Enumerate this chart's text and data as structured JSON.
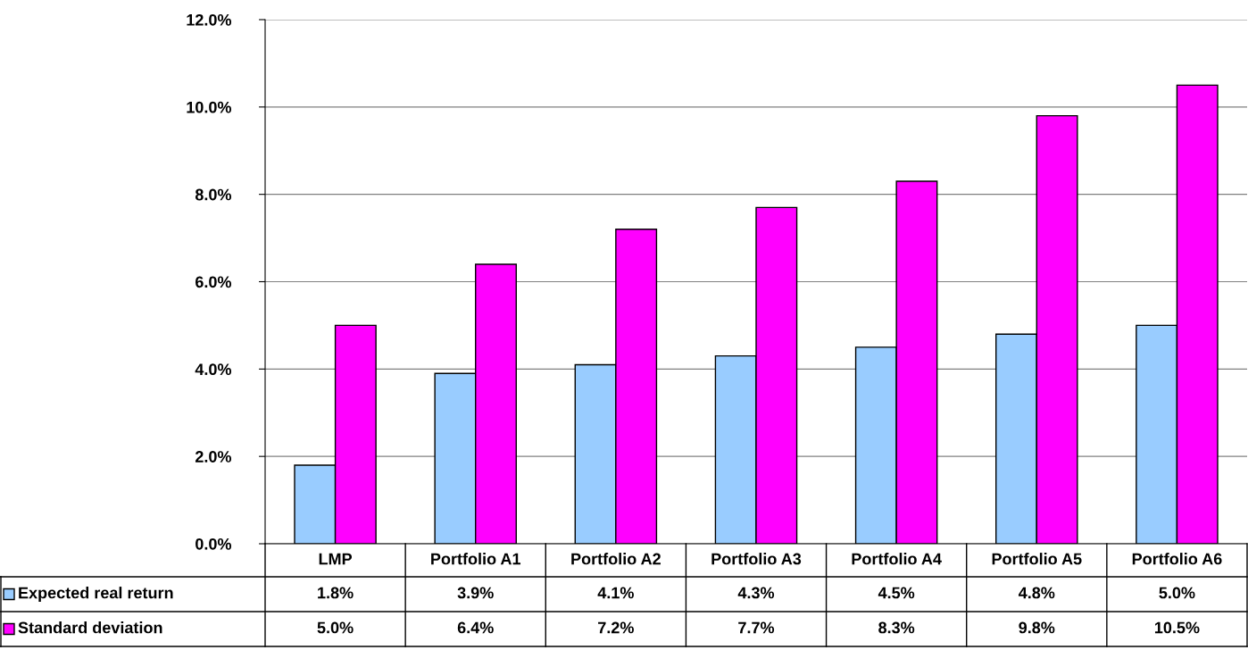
{
  "chart_data": {
    "type": "bar",
    "categories": [
      "LMP",
      "Portfolio A1",
      "Portfolio A2",
      "Portfolio A3",
      "Portfolio A4",
      "Portfolio A5",
      "Portfolio A6"
    ],
    "series": [
      {
        "name": "Expected real return",
        "color": "#99ccff",
        "values": [
          1.8,
          3.9,
          4.1,
          4.3,
          4.5,
          4.8,
          5.0
        ],
        "value_labels": [
          "1.8%",
          "3.9%",
          "4.1%",
          "4.3%",
          "4.5%",
          "4.8%",
          "5.0%"
        ]
      },
      {
        "name": "Standard deviation",
        "color": "#ff00ff",
        "values": [
          5.0,
          6.4,
          7.2,
          7.7,
          8.3,
          9.8,
          10.5
        ],
        "value_labels": [
          "5.0%",
          "6.4%",
          "7.2%",
          "7.7%",
          "8.3%",
          "9.8%",
          "10.5%"
        ]
      }
    ],
    "ylim": [
      0,
      12
    ],
    "yticks": [
      {
        "value": 0,
        "label": "0.0%"
      },
      {
        "value": 2,
        "label": "2.0%"
      },
      {
        "value": 4,
        "label": "4.0%"
      },
      {
        "value": 6,
        "label": "6.0%"
      },
      {
        "value": 8,
        "label": "8.0%"
      },
      {
        "value": 10,
        "label": "10.0%"
      },
      {
        "value": 12,
        "label": "12.0%"
      }
    ],
    "grid": "y",
    "legend": "bottom"
  }
}
